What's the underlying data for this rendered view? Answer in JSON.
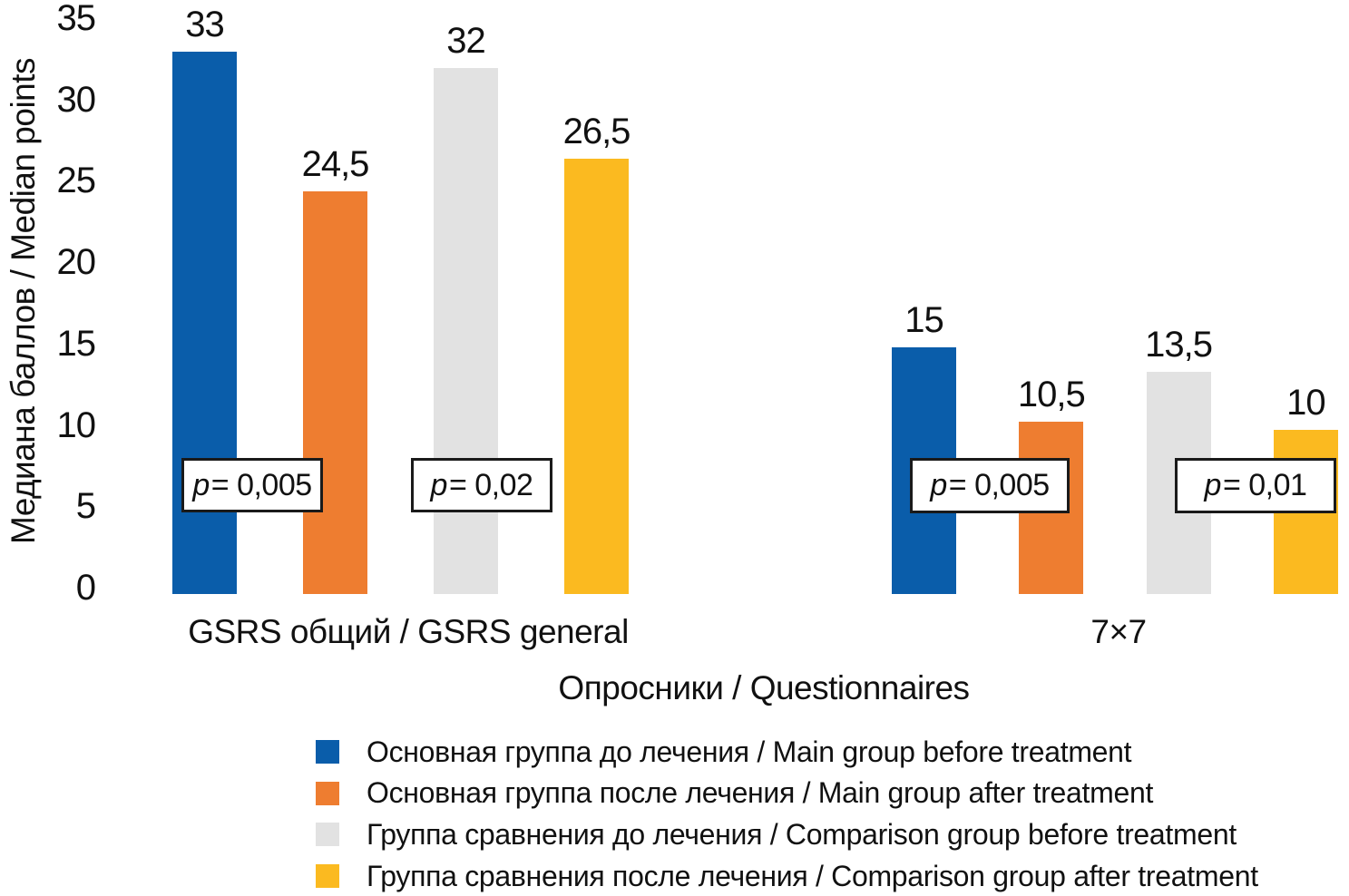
{
  "chart_data": {
    "type": "bar",
    "title": "",
    "xlabel": "Опросники / Questionnaires",
    "ylabel": "Медиана баллов / Median points",
    "ylim": [
      0,
      35
    ],
    "grid": false,
    "legend_position": "bottom",
    "y_ticks": [
      "0",
      "5",
      "10",
      "15",
      "20",
      "25",
      "30",
      "35"
    ],
    "categories": [
      "GSRS общий / GSRS general",
      "7×7"
    ],
    "series": [
      {
        "slug": "main-group-before-treatment",
        "name": "Основная группа до лечения / Main group before treatment",
        "color": "#0A5DAA",
        "values": [
          33,
          15
        ],
        "labels": [
          "33",
          "15"
        ]
      },
      {
        "slug": "main-group-after-treatment",
        "name": "Основная группа после лечения / Main group after treatment",
        "color": "#EE7D30",
        "values": [
          24.5,
          10.5
        ],
        "labels": [
          "24,5",
          "10,5"
        ]
      },
      {
        "slug": "comparison-group-before-treatment",
        "name": "Группа сравнения до лечения / Comparison group before treatment",
        "color": "#E2E2E2",
        "values": [
          32,
          13.5
        ],
        "labels": [
          "32",
          "13,5"
        ]
      },
      {
        "slug": "comparison-group-after-treatment",
        "name": "Группа сравнения после лечения / Comparison group after treatment",
        "color": "#FBBA20",
        "values": [
          26.5,
          10
        ],
        "labels": [
          "26,5",
          "10"
        ]
      }
    ],
    "annotations": [
      {
        "label": "p = 0,005",
        "category": "GSRS общий / GSRS general",
        "pair": "main group before vs after"
      },
      {
        "label": "p = 0,02",
        "category": "GSRS общий / GSRS general",
        "pair": "comparison group before vs after"
      },
      {
        "label": "p = 0,005",
        "category": "7×7",
        "pair": "main group before vs after"
      },
      {
        "label": "p = 0,01",
        "category": "7×7",
        "pair": "comparison group before vs after"
      }
    ]
  }
}
